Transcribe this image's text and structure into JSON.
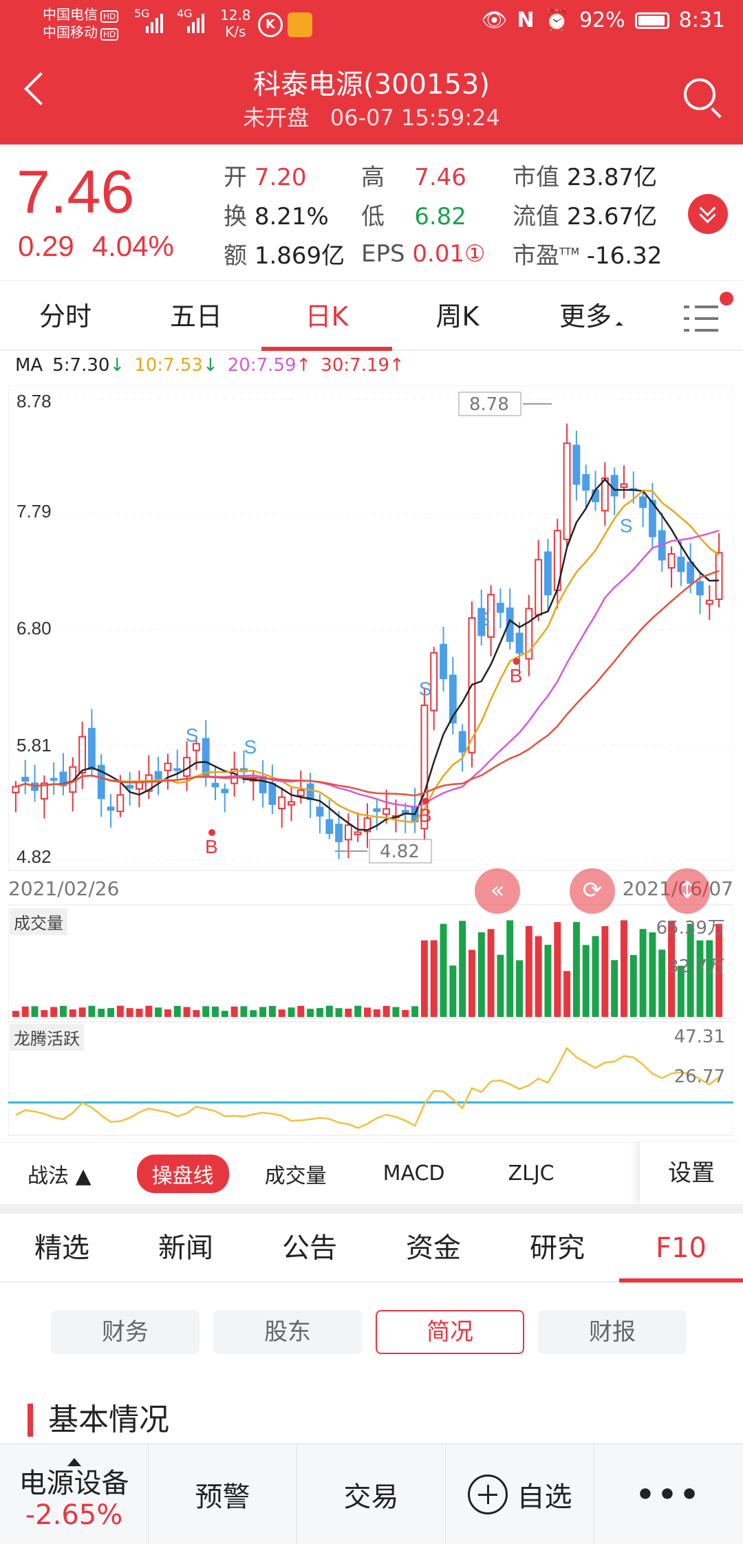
{
  "status": {
    "carrier1": "中国电信",
    "carrier2": "中国移动",
    "hd": "HD",
    "net1": "5G",
    "net2": "4G",
    "speed_val": "12.8",
    "speed_unit": "K/s",
    "battery": "92%",
    "time": "8:31"
  },
  "header": {
    "title": "科泰电源(300153)",
    "subtitle": "未开盘   06-07 15:59:24"
  },
  "quote": {
    "price": "7.46",
    "change": "0.29",
    "change_pct": "4.04%",
    "rows": [
      {
        "l1": "开",
        "v1": "7.20",
        "l2": "高",
        "v2": "7.46",
        "l3": "市值",
        "v3": "23.87亿"
      },
      {
        "l1": "换",
        "v1": "8.21%",
        "l2": "低",
        "v2": "6.82",
        "l3": "流值",
        "v3": "23.67亿"
      },
      {
        "l1": "额",
        "v1": "1.869亿",
        "l2": "EPS",
        "v2": "0.01①",
        "l3": "市盈",
        "l3sup": "TTM",
        "v3": "-16.32"
      }
    ]
  },
  "period_tabs": [
    "分时",
    "五日",
    "日K",
    "周K",
    "更多"
  ],
  "ma": {
    "prefix": "MA",
    "ma5": "5:7.30",
    "ma10": "10:7.53",
    "ma20": "20:7.59",
    "ma30": "30:7.19",
    "ma5_arrow": "↓",
    "ma10_arrow": "↓",
    "ma20_arrow": "↑",
    "ma30_arrow": "↑"
  },
  "chart_data": {
    "type": "candlestick",
    "y_ticks": [
      "8.78",
      "7.79",
      "6.80",
      "5.81",
      "4.82"
    ],
    "ylim": [
      4.82,
      8.78
    ],
    "start_date": "2021/02/26",
    "end_date": "2021/06/07",
    "high_marker": "8.78",
    "low_marker": "4.82",
    "closes": [
      5.45,
      5.5,
      5.42,
      5.48,
      5.51,
      5.46,
      5.62,
      5.88,
      5.6,
      5.35,
      5.25,
      5.38,
      5.44,
      5.49,
      5.55,
      5.52,
      5.65,
      5.6,
      5.7,
      5.82,
      5.55,
      5.45,
      5.4,
      5.6,
      5.58,
      5.52,
      5.4,
      5.3,
      5.36,
      5.32,
      5.42,
      5.34,
      5.2,
      5.05,
      4.98,
      5.12,
      5.06,
      5.18,
      5.24,
      5.26,
      5.2,
      5.22,
      5.15,
      6.15,
      6.6,
      6.38,
      6.0,
      5.75,
      6.9,
      6.75,
      7.1,
      6.95,
      6.7,
      6.6,
      6.98,
      7.4,
      7.1,
      7.65,
      8.4,
      8.05,
      8.0,
      7.9,
      8.1,
      7.95,
      8.05,
      8.0,
      7.85,
      7.6,
      7.4,
      7.45,
      7.3,
      7.2,
      7.1,
      7.05,
      7.46
    ],
    "volume_labels": {
      "max": "65.39万",
      "mid": "32.7万"
    },
    "indicator_labels": {
      "v1": "47.31",
      "v2": "26.77"
    },
    "buy_signals": "B",
    "sell_signals": "S"
  },
  "panels": {
    "volume": "成交量",
    "indicator": "龙腾活跃"
  },
  "indicator_bar": {
    "zhanfa": "战法",
    "items": [
      "操盘线",
      "成交量",
      "MACD",
      "ZLJC"
    ],
    "settings": "设置"
  },
  "info_tabs": [
    "精选",
    "新闻",
    "公告",
    "资金",
    "研究",
    "F10"
  ],
  "sub_tabs": [
    "财务",
    "股东",
    "简况",
    "财报"
  ],
  "section_title": "基本情况",
  "bottom": {
    "sector_name": "电源设备",
    "sector_change": "-2.65%",
    "alert": "预警",
    "trade": "交易",
    "watch": "自选",
    "more": "•••"
  },
  "colors": {
    "brand_red": "#e8363f",
    "down_green": "#1aa34a",
    "candle_blue": "#4a9fe8",
    "ma5": "#222222",
    "ma10": "#e6a817",
    "ma20": "#d65ad6",
    "ma30": "#e8503a"
  }
}
